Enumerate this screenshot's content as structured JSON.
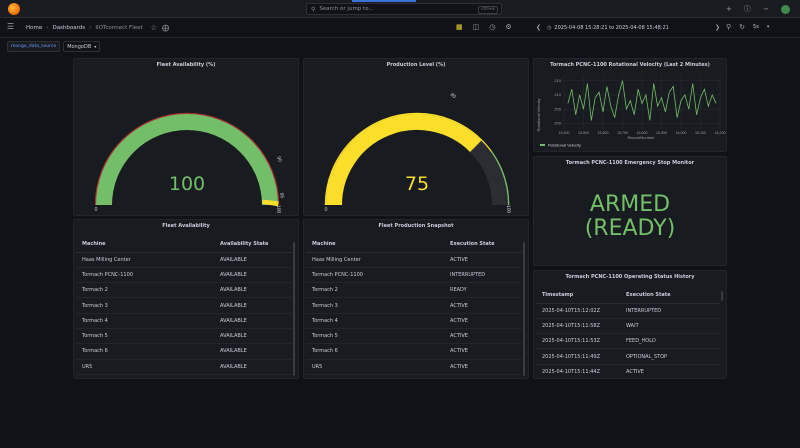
{
  "topbar": {
    "search_placeholder": "Search or jump to...",
    "search_shortcut": "ctrl+k",
    "add_label": "+",
    "icons": [
      "grafana-logo",
      "plus-icon",
      "help-icon",
      "rss-icon",
      "avatar"
    ]
  },
  "breadcrumb": {
    "home": "Home",
    "dashboards": "Dashboards",
    "current": "IIOTconnect Fleet"
  },
  "toolbar": {
    "time_range": "2025-04-08 15:28:21 to 2025-04-08 15:48:21",
    "refresh_interval": "5s"
  },
  "variables": {
    "label": "mongo_data_source",
    "value": "MongoDB"
  },
  "panels": {
    "fleet_availability_gauge": {
      "title": "Fleet Availability (%)",
      "value": "100",
      "value_number": 100,
      "min_label": "0",
      "threshold_labels": [
        "90",
        "95",
        "100"
      ],
      "value_color": "#73bf69"
    },
    "production_level_gauge": {
      "title": "Production Level (%)",
      "value": "75",
      "value_number": 75,
      "min_label": "0",
      "threshold_labels": [
        "80",
        "100"
      ],
      "value_color": "#fade2a"
    },
    "rotational_velocity": {
      "title": "Tormach PCNC-1100 Rotational Velocity (Last 2 Minutes)",
      "ylabel": "Rotational Velocity",
      "xlabel": "RecordNumber",
      "legend": "Rotational Velocity",
      "line_color": "#73bf69"
    },
    "emergency_stop": {
      "title": "Tormach PCNC-1100 Emergency Stop Monitor",
      "line1": "ARMED",
      "line2": "(READY)",
      "color": "#73bf69"
    },
    "fleet_availability_table": {
      "title": "Fleet Availability",
      "columns": [
        "Machine",
        "Availability State"
      ],
      "rows": [
        [
          "Haas Milling Center",
          "AVAILABLE"
        ],
        [
          "Tormach PCNC-1100",
          "AVAILABLE"
        ],
        [
          "Tormach 2",
          "AVAILABLE"
        ],
        [
          "Tormach 3",
          "AVAILABLE"
        ],
        [
          "Tormach 4",
          "AVAILABLE"
        ],
        [
          "Tormach 5",
          "AVAILABLE"
        ],
        [
          "Tormach 6",
          "AVAILABLE"
        ],
        [
          "UR5",
          "AVAILABLE"
        ]
      ]
    },
    "fleet_production_table": {
      "title": "Fleet Production Snapshot",
      "columns": [
        "Machine",
        "Execution State"
      ],
      "rows": [
        [
          "Haas Milling Center",
          "ACTIVE"
        ],
        [
          "Tormach PCNC-1100",
          "INTERRUPTED"
        ],
        [
          "Tormach 2",
          "READY"
        ],
        [
          "Tormach 3",
          "ACTIVE"
        ],
        [
          "Tormach 4",
          "ACTIVE"
        ],
        [
          "Tormach 5",
          "ACTIVE"
        ],
        [
          "Tormach 6",
          "ACTIVE"
        ],
        [
          "UR5",
          "ACTIVE"
        ]
      ]
    },
    "status_history": {
      "title": "Tormach PCNC-1100 Operating Status History",
      "columns": [
        "Timestamp",
        "Execution State"
      ],
      "rows": [
        [
          "2025-04-10T15:12:02Z",
          "INTERRUPTED"
        ],
        [
          "2025-04-10T15:11:58Z",
          "WAIT"
        ],
        [
          "2025-04-10T15:11:53Z",
          "FEED_HOLD"
        ],
        [
          "2025-04-10T15:11:49Z",
          "OPTIONAL_STOP"
        ],
        [
          "2025-04-10T15:11:44Z",
          "ACTIVE"
        ]
      ]
    }
  },
  "chart_data": {
    "type": "line",
    "title": "Tormach PCNC-1100 Rotational Velocity (Last 2 Minutes)",
    "xlabel": "RecordNumber",
    "ylabel": "Rotational Velocity",
    "x_tick_labels": [
      "15,400",
      "15,500",
      "15,600",
      "15,700",
      "15,800",
      "15,900",
      "16,000",
      "16,100",
      "16,200"
    ],
    "y_tick_labels": [
      "215",
      "210",
      "205",
      "200"
    ],
    "ylim": [
      198,
      217
    ],
    "xlim": [
      15400,
      16200
    ],
    "series": [
      {
        "name": "Rotational Velocity",
        "x": [
          15420,
          15440,
          15460,
          15480,
          15500,
          15520,
          15540,
          15560,
          15580,
          15600,
          15620,
          15640,
          15660,
          15680,
          15700,
          15720,
          15740,
          15760,
          15780,
          15800,
          15820,
          15840,
          15860,
          15880,
          15900,
          15920,
          15940,
          15960,
          15980,
          16000,
          16020,
          16040,
          16060,
          16080,
          16100,
          16120,
          16140,
          16160,
          16180
        ],
        "values": [
          207,
          212,
          203,
          210,
          205,
          214,
          201,
          209,
          211,
          204,
          213,
          206,
          202,
          210,
          215,
          205,
          208,
          203,
          212,
          207,
          210,
          201,
          214,
          206,
          209,
          204,
          211,
          213,
          202,
          208,
          210,
          205,
          214,
          203,
          209,
          212,
          206,
          210,
          207
        ]
      }
    ],
    "legend_position": "bottom-left",
    "grid": true
  }
}
